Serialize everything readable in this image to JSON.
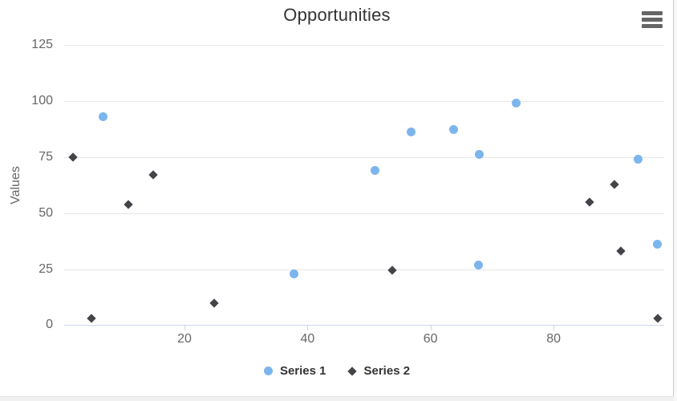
{
  "title": "Opportunities",
  "y_axis_title": "Values",
  "menu": {
    "icon": "hamburger-menu-icon"
  },
  "colors": {
    "series1": "#7cb5ec",
    "series2": "#434348",
    "grid_line": "#e6e6e6",
    "axis_line": "#ccd6eb",
    "tick_label": "#666666",
    "title_text": "#333333",
    "legend_text": "#333333",
    "menu_icon": "#666666"
  },
  "chart_data": {
    "type": "scatter",
    "title": "Opportunities",
    "xlabel": "",
    "ylabel": "Values",
    "xlim": [
      0,
      100
    ],
    "ylim": [
      0,
      125
    ],
    "x_ticks": [
      20,
      40,
      60,
      80
    ],
    "y_ticks": [
      0,
      25,
      50,
      75,
      100,
      125
    ],
    "grid": "horizontal-only",
    "legend_position": "bottom-center",
    "series": [
      {
        "name": "Series 1",
        "marker": "circle",
        "color": "#7cb5ec",
        "points": [
          [
            6.8,
            93.2
          ],
          [
            37.8,
            23.2
          ],
          [
            50.9,
            69.3
          ],
          [
            56.8,
            86.3
          ],
          [
            63.8,
            87.4
          ],
          [
            67.8,
            27.0
          ],
          [
            67.9,
            76.3
          ],
          [
            73.9,
            99.2
          ],
          [
            93.8,
            74.2
          ],
          [
            96.9,
            36.2
          ]
        ]
      },
      {
        "name": "Series 2",
        "marker": "diamond",
        "color": "#434348",
        "points": [
          [
            1.9,
            75.0
          ],
          [
            4.8,
            3.0
          ],
          [
            10.8,
            54.0
          ],
          [
            14.9,
            67.2
          ],
          [
            24.8,
            9.8
          ],
          [
            53.8,
            24.8
          ],
          [
            85.8,
            55.0
          ],
          [
            89.9,
            63.0
          ],
          [
            90.9,
            33.1
          ],
          [
            96.9,
            3.2
          ]
        ]
      }
    ]
  }
}
